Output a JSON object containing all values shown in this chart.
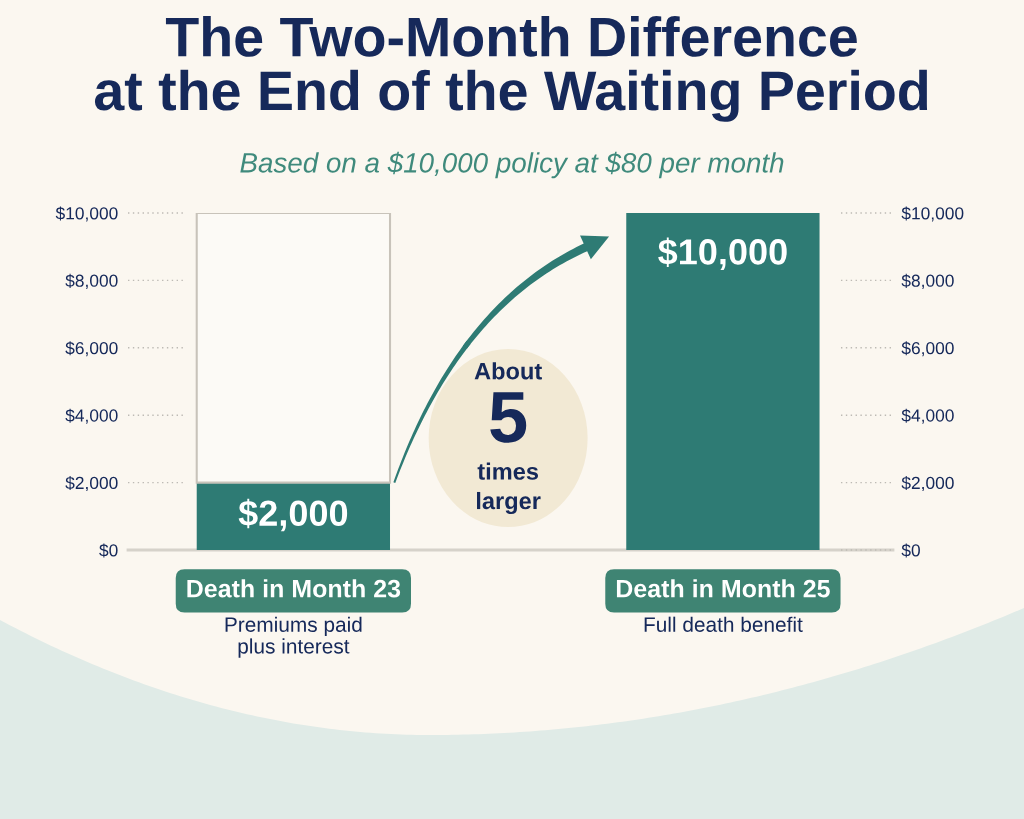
{
  "chart_data": {
    "type": "bar",
    "title": "The Two-Month Difference\nat the End of the Waiting Period",
    "subtitle": "Based on a $10,000 policy at $80 per month",
    "categories": [
      "Death in Month 23",
      "Death in Month 25"
    ],
    "stacked": true,
    "series": [
      {
        "color": "#2e7b74",
        "values": [
          2000,
          10000
        ],
        "value_labels": [
          "$2,000",
          "$10,000"
        ]
      },
      {
        "color": "#fcfaf6",
        "values": [
          8000,
          null
        ]
      }
    ],
    "ylim": [
      0,
      10000
    ],
    "yticks": [
      {
        "value": 0,
        "label": "$0"
      },
      {
        "value": 2000,
        "label": "$2,000"
      },
      {
        "value": 4000,
        "label": "$4,000"
      },
      {
        "value": 6000,
        "label": "$6,000"
      },
      {
        "value": 8000,
        "label": "$8,000"
      },
      {
        "value": 10000,
        "label": "$10,000"
      }
    ],
    "y2lim": [
      0,
      10000
    ],
    "y2ticks": [
      {
        "value": 0,
        "label": "$0"
      },
      {
        "value": 2000,
        "label": "$2,000"
      },
      {
        "value": 4000,
        "label": "$4,000"
      },
      {
        "value": 6000,
        "label": "$6,000"
      },
      {
        "value": 8000,
        "label": "$8,000"
      },
      {
        "value": 10000,
        "label": "$10,000"
      }
    ],
    "annotations": [
      "About\n5\ntimes\nlarger",
      "Premiums paid\nplus interest",
      "Full death benefit"
    ]
  }
}
